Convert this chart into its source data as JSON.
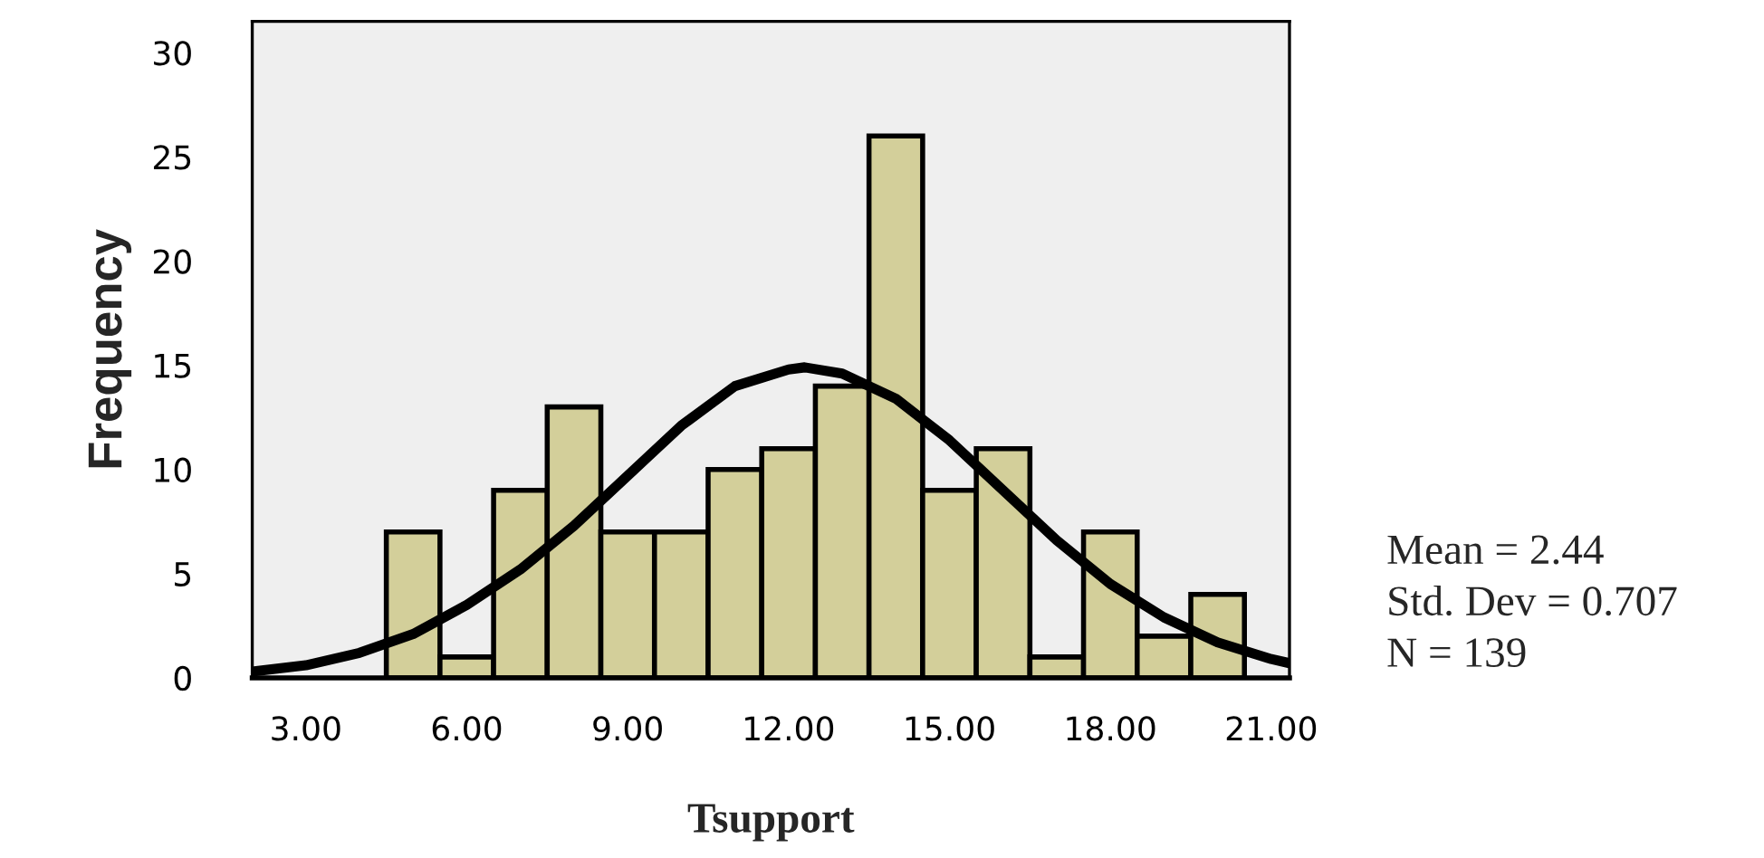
{
  "chart_data": {
    "type": "histogram",
    "xlabel": "Tsupport",
    "ylabel": "Frequency",
    "bins": [
      4.5,
      5.5,
      6.5,
      7.5,
      8.5,
      9.5,
      10.5,
      11.5,
      12.5,
      13.5,
      14.5,
      15.5,
      16.5,
      17.5,
      18.5,
      19.5,
      20.5
    ],
    "values": [
      7,
      1,
      9,
      13,
      7,
      7,
      10,
      11,
      14,
      26,
      9,
      11,
      1,
      7,
      2,
      4
    ],
    "color": "#d3cf9a",
    "series": [
      {
        "type": "line",
        "color": "#000000",
        "x": [
          2.0,
          3,
          4,
          5,
          6,
          7,
          8,
          9,
          10,
          11,
          12,
          12.3,
          13,
          14,
          15,
          16,
          17,
          18,
          19,
          20,
          21,
          21.34
        ],
        "values": [
          0.3,
          0.6,
          1.2,
          2.1,
          3.5,
          5.2,
          7.3,
          9.7,
          12.1,
          14.0,
          14.8,
          14.9,
          14.6,
          13.4,
          11.4,
          9.0,
          6.6,
          4.5,
          2.9,
          1.7,
          0.9,
          0.7
        ]
      }
    ],
    "xlim": [
      2.0,
      21.34
    ],
    "xticks": [
      {
        "value": 3,
        "label": "3.00"
      },
      {
        "value": 6,
        "label": "6.00"
      },
      {
        "value": 9,
        "label": "9.00"
      },
      {
        "value": 12,
        "label": "12.00"
      },
      {
        "value": 15,
        "label": "15.00"
      },
      {
        "value": 18,
        "label": "18.00"
      },
      {
        "value": 21,
        "label": "21.00"
      }
    ],
    "ylim": [
      0,
      31.5
    ],
    "yticks": [
      0,
      5,
      10,
      15,
      20,
      25,
      30
    ],
    "annotations": [
      "Mean = 2.44",
      "Std. Dev = 0.707",
      "N = 139"
    ],
    "grid": false
  }
}
